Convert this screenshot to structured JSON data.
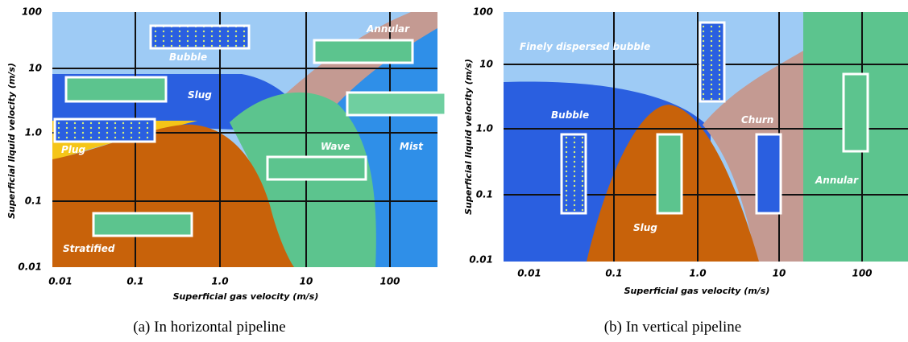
{
  "panels": [
    {
      "y_label": "Superficial liquid velocity (m/s)",
      "x_label": "Superficial gas velocity (m/s)",
      "x_ticks": [
        "0.01",
        "0.1",
        "1.0",
        "10",
        "100"
      ],
      "y_ticks": [
        "100",
        "10",
        "1.0",
        "0.1",
        "0.01"
      ],
      "regions": [
        "Bubble",
        "Annular",
        "Slug",
        "Plug",
        "Wave",
        "Mist",
        "Stratified"
      ],
      "caption": "(a) In horizontal pipeline"
    },
    {
      "y_label": "Superficial liquid velocity (m/s)",
      "x_label": "Superficial gas velocity (m/s)",
      "x_ticks": [
        "0.01",
        "0.1",
        "1.0",
        "10",
        "100"
      ],
      "y_ticks": [
        "100",
        "10",
        "1.0",
        "0.1",
        "0.01"
      ],
      "regions": [
        "Finely dispersed bubble",
        "Bubble",
        "Churn",
        "Slug",
        "Annular"
      ],
      "caption": "(b) In vertical pipeline"
    }
  ]
}
